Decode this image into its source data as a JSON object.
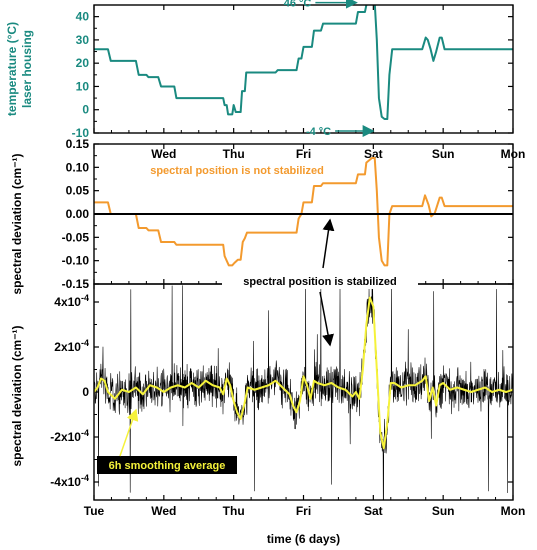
{
  "colors": {
    "temperature": "#1a8a80",
    "unstabilized": "#f39a2e",
    "stabilized": "#000000",
    "smoothing": "#f5f23a",
    "axis": "#000000"
  },
  "chart_data": [
    {
      "type": "line",
      "panel": "temperature",
      "ylabel": [
        "temperature (°C)",
        "laser housing"
      ],
      "ylim": [
        -10,
        45
      ],
      "yticks": [
        -10,
        0,
        10,
        20,
        30,
        40
      ],
      "xlim": [
        0,
        6
      ],
      "xtick_labels": [
        "Tue",
        "Wed",
        "Thu",
        "Fri",
        "Sat",
        "Sun",
        "Mon"
      ],
      "show_xtick_labels": false,
      "annotations": [
        {
          "text": "46 °C",
          "x": 3.8,
          "y": 46
        },
        {
          "text": "-4 °C",
          "x": 4.04,
          "y": -4
        }
      ],
      "series": [
        {
          "color_key": "temperature",
          "points": [
            [
              0,
              26
            ],
            [
              0.2,
              26
            ],
            [
              0.24,
              21
            ],
            [
              0.6,
              21
            ],
            [
              0.64,
              15
            ],
            [
              0.75,
              15
            ],
            [
              0.78,
              14
            ],
            [
              0.92,
              14
            ],
            [
              0.96,
              10
            ],
            [
              1.15,
              10
            ],
            [
              1.18,
              5
            ],
            [
              1.85,
              5
            ],
            [
              1.87,
              2
            ],
            [
              1.9,
              2
            ],
            [
              1.92,
              -2
            ],
            [
              1.98,
              -2
            ],
            [
              2.0,
              2
            ],
            [
              2.03,
              -1
            ],
            [
              2.1,
              -1
            ],
            [
              2.12,
              8
            ],
            [
              2.16,
              8
            ],
            [
              2.18,
              16
            ],
            [
              2.6,
              16
            ],
            [
              2.63,
              17
            ],
            [
              2.9,
              17
            ],
            [
              2.93,
              22
            ],
            [
              2.97,
              22
            ],
            [
              3.0,
              27
            ],
            [
              3.12,
              27
            ],
            [
              3.15,
              34
            ],
            [
              3.25,
              34
            ],
            [
              3.28,
              37
            ],
            [
              3.75,
              37
            ],
            [
              3.78,
              42
            ],
            [
              3.88,
              42
            ],
            [
              3.9,
              45
            ],
            [
              3.98,
              46
            ],
            [
              4.02,
              46
            ],
            [
              4.05,
              30
            ],
            [
              4.08,
              5
            ],
            [
              4.12,
              -3
            ],
            [
              4.16,
              -4
            ],
            [
              4.2,
              -4
            ],
            [
              4.23,
              15
            ],
            [
              4.27,
              26
            ],
            [
              4.7,
              26
            ],
            [
              4.75,
              31
            ],
            [
              4.78,
              30
            ],
            [
              4.82,
              26
            ],
            [
              4.86,
              21
            ],
            [
              4.9,
              25
            ],
            [
              4.95,
              31
            ],
            [
              4.98,
              31
            ],
            [
              5.02,
              26
            ],
            [
              6,
              26
            ]
          ]
        }
      ]
    },
    {
      "type": "line",
      "panel": "spectral-position",
      "ylabel": [
        "spectral deviation (cm⁻¹)"
      ],
      "ylim": [
        -0.15,
        0.15
      ],
      "yticks": [
        -0.15,
        -0.1,
        -0.05,
        0.0,
        0.05,
        0.1,
        0.15
      ],
      "ytick_labels": [
        "-0.15",
        "-0.10",
        "-0.05",
        "0.00",
        "0.05",
        "0.10",
        "0.15"
      ],
      "xlim": [
        0,
        6
      ],
      "xtick_labels": [
        "",
        "Wed",
        "Thu",
        "Fri",
        "Sat",
        "Sun",
        "Mon"
      ],
      "show_xtick_labels": true,
      "annotations": [
        {
          "text": "spectral position is not stabilized",
          "x": 2.2,
          "y": 0.105
        },
        {
          "text": "spectral position is stabilized",
          "x": 3.3,
          "y": -0.165
        }
      ],
      "series": [
        {
          "name": "spectral position is not stabilized",
          "color_key": "unstabilized",
          "points": [
            [
              0,
              0.025
            ],
            [
              0.2,
              0.025
            ],
            [
              0.24,
              0.0
            ],
            [
              0.6,
              0.0
            ],
            [
              0.64,
              -0.03
            ],
            [
              0.75,
              -0.03
            ],
            [
              0.78,
              -0.035
            ],
            [
              0.92,
              -0.035
            ],
            [
              0.96,
              -0.06
            ],
            [
              1.15,
              -0.06
            ],
            [
              1.18,
              -0.066
            ],
            [
              1.85,
              -0.066
            ],
            [
              1.87,
              -0.09
            ],
            [
              1.9,
              -0.1
            ],
            [
              1.93,
              -0.11
            ],
            [
              1.98,
              -0.11
            ],
            [
              2.01,
              -0.105
            ],
            [
              2.06,
              -0.098
            ],
            [
              2.1,
              -0.098
            ],
            [
              2.13,
              -0.06
            ],
            [
              2.16,
              -0.052
            ],
            [
              2.19,
              -0.04
            ],
            [
              2.9,
              -0.04
            ],
            [
              2.93,
              -0.01
            ],
            [
              2.97,
              0.0
            ],
            [
              3.0,
              0.025
            ],
            [
              3.12,
              0.025
            ],
            [
              3.15,
              0.06
            ],
            [
              3.25,
              0.06
            ],
            [
              3.28,
              0.066
            ],
            [
              3.75,
              0.066
            ],
            [
              3.78,
              0.085
            ],
            [
              3.88,
              0.085
            ],
            [
              3.9,
              0.11
            ],
            [
              3.98,
              0.12
            ],
            [
              4.02,
              0.12
            ],
            [
              4.05,
              0.05
            ],
            [
              4.08,
              -0.05
            ],
            [
              4.12,
              -0.1
            ],
            [
              4.16,
              -0.11
            ],
            [
              4.2,
              -0.11
            ],
            [
              4.23,
              0.0
            ],
            [
              4.27,
              0.017
            ],
            [
              4.7,
              0.017
            ],
            [
              4.74,
              0.04
            ],
            [
              4.79,
              0.02
            ],
            [
              4.83,
              -0.005
            ],
            [
              4.88,
              0.002
            ],
            [
              4.95,
              0.035
            ],
            [
              4.98,
              0.035
            ],
            [
              5.02,
              0.017
            ],
            [
              6,
              0.017
            ]
          ]
        },
        {
          "name": "spectral position is stabilized",
          "color_key": "stabilized",
          "points": [
            [
              0,
              0.0
            ],
            [
              6,
              0.0
            ]
          ]
        }
      ]
    },
    {
      "type": "line",
      "panel": "stabilized-residual",
      "ylabel": [
        "spectral deviation (cm⁻¹)"
      ],
      "ylim": [
        -0.00048,
        0.00048
      ],
      "yticks": [
        -0.0004,
        -0.0002,
        0,
        0.0002,
        0.0004
      ],
      "ytick_labels": [
        "-4×10⁻⁴",
        "-2×10⁻⁴",
        "0",
        "2×10⁻⁴",
        "4×10⁻⁴"
      ],
      "xlim": [
        0,
        6
      ],
      "xlabel": "time (6 days)",
      "xtick_labels": [
        "Tue",
        "Wed",
        "Thu",
        "Fri",
        "Sat",
        "Sun",
        "Mon"
      ],
      "show_xtick_labels": true,
      "annotations": [
        {
          "text": "6h smoothing average",
          "x": 0.95,
          "y": -0.00034
        }
      ],
      "series": [
        {
          "name": "stabilized signal",
          "color_key": "stabilized",
          "noise_amplitude": 7e-05
        },
        {
          "name": "6h smoothing average",
          "color_key": "smoothing",
          "points": [
            [
              0,
              0.0
            ],
            [
              0.05,
              2e-05
            ],
            [
              0.1,
              6e-05
            ],
            [
              0.15,
              5e-05
            ],
            [
              0.2,
              0.0
            ],
            [
              0.3,
              -3e-05
            ],
            [
              0.4,
              1e-05
            ],
            [
              0.5,
              0.0
            ],
            [
              0.6,
              2e-05
            ],
            [
              0.7,
              -1e-05
            ],
            [
              0.8,
              3e-05
            ],
            [
              0.9,
              2e-05
            ],
            [
              1.0,
              0.0
            ],
            [
              1.1,
              2e-05
            ],
            [
              1.2,
              3e-05
            ],
            [
              1.3,
              2e-05
            ],
            [
              1.4,
              4e-05
            ],
            [
              1.5,
              2e-05
            ],
            [
              1.6,
              5e-05
            ],
            [
              1.7,
              3e-05
            ],
            [
              1.8,
              2e-05
            ],
            [
              1.85,
              -1e-05
            ],
            [
              1.9,
              6e-05
            ],
            [
              1.95,
              3e-05
            ],
            [
              2.0,
              -4e-05
            ],
            [
              2.05,
              -9e-05
            ],
            [
              2.1,
              -0.00012
            ],
            [
              2.15,
              -6e-05
            ],
            [
              2.2,
              2e-05
            ],
            [
              2.3,
              1e-05
            ],
            [
              2.4,
              2e-05
            ],
            [
              2.5,
              3e-05
            ],
            [
              2.6,
              5e-05
            ],
            [
              2.7,
              2e-05
            ],
            [
              2.8,
              -1e-05
            ],
            [
              2.85,
              -6e-05
            ],
            [
              2.9,
              -9e-05
            ],
            [
              2.95,
              -4e-05
            ],
            [
              3.0,
              7e-05
            ],
            [
              3.05,
              3e-05
            ],
            [
              3.1,
              -3e-05
            ],
            [
              3.15,
              5e-05
            ],
            [
              3.2,
              4e-05
            ],
            [
              3.3,
              3e-05
            ],
            [
              3.4,
              4e-05
            ],
            [
              3.5,
              2e-05
            ],
            [
              3.6,
              1e-05
            ],
            [
              3.7,
              -2e-05
            ],
            [
              3.75,
              0.0
            ],
            [
              3.8,
              -3e-05
            ],
            [
              3.85,
              0.0001
            ],
            [
              3.9,
              0.0003
            ],
            [
              3.95,
              0.00042
            ],
            [
              4.0,
              0.00038
            ],
            [
              4.05,
              0.0001
            ],
            [
              4.1,
              -0.00018
            ],
            [
              4.15,
              -0.00025
            ],
            [
              4.2,
              -0.00014
            ],
            [
              4.25,
              4e-05
            ],
            [
              4.3,
              4e-05
            ],
            [
              4.4,
              2e-05
            ],
            [
              4.5,
              3e-05
            ],
            [
              4.6,
              3e-05
            ],
            [
              4.7,
              5e-05
            ],
            [
              4.75,
              7e-05
            ],
            [
              4.8,
              -4e-05
            ],
            [
              4.85,
              2e-05
            ],
            [
              4.9,
              -6e-05
            ],
            [
              4.95,
              3e-05
            ],
            [
              5.0,
              4e-05
            ],
            [
              5.1,
              1e-05
            ],
            [
              5.2,
              2e-05
            ],
            [
              5.3,
              1e-05
            ],
            [
              5.4,
              0.0
            ],
            [
              5.5,
              1e-05
            ],
            [
              5.6,
              2e-05
            ],
            [
              5.7,
              0.0
            ],
            [
              5.8,
              1e-05
            ],
            [
              5.9,
              0.0
            ],
            [
              6.0,
              1e-05
            ]
          ]
        }
      ]
    }
  ]
}
